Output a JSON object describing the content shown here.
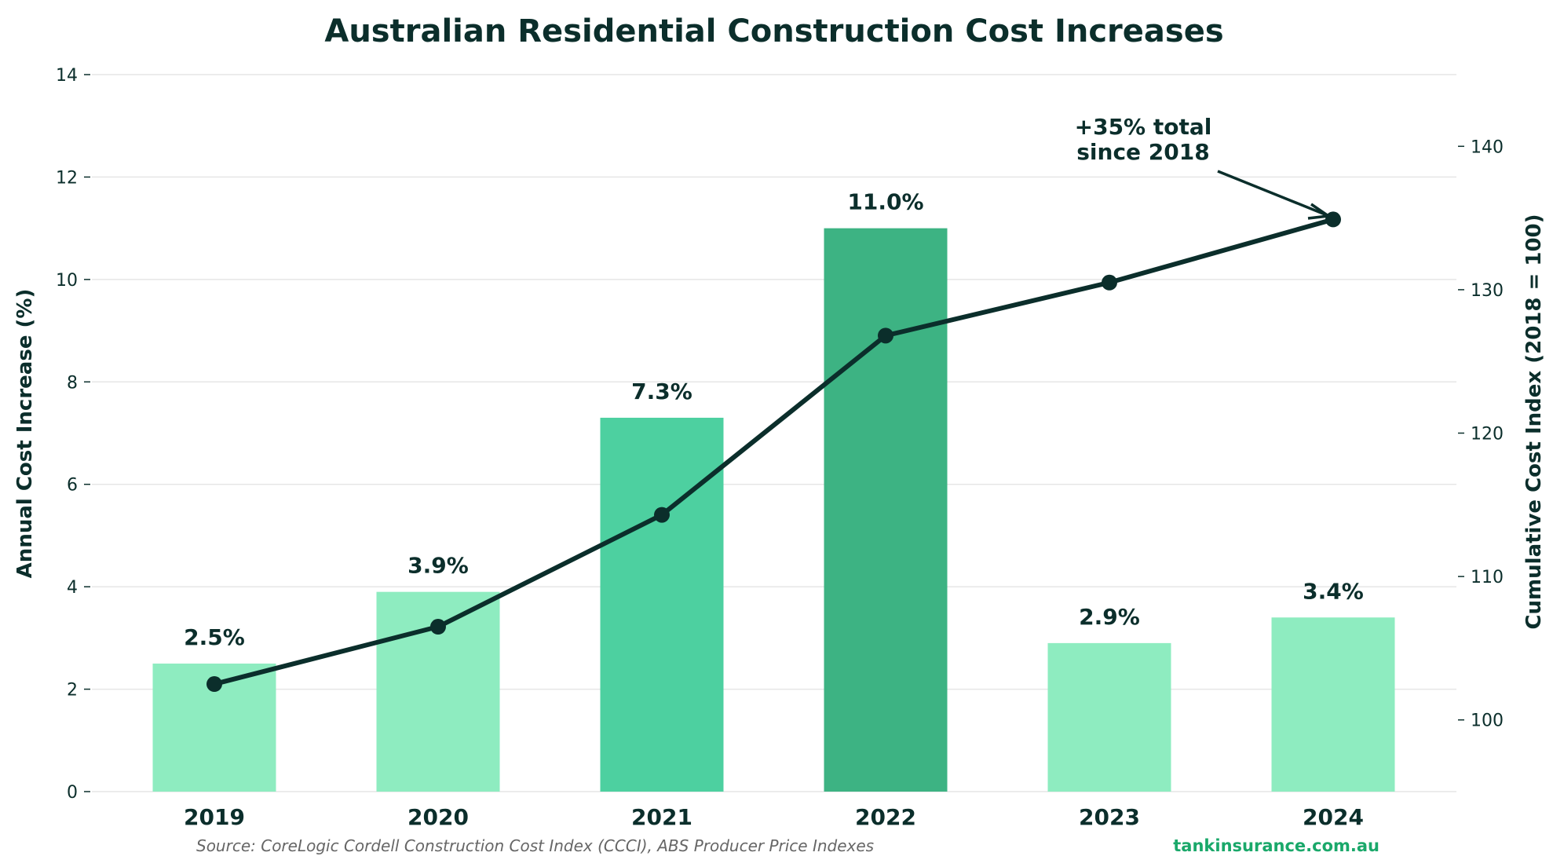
{
  "chart_data": {
    "type": "bar+line",
    "title": "Australian Residential Construction Cost Increases",
    "categories": [
      "2019",
      "2020",
      "2021",
      "2022",
      "2023",
      "2024"
    ],
    "bars": {
      "values": [
        2.5,
        3.9,
        7.3,
        11.0,
        2.9,
        3.4
      ],
      "labels": [
        "2.5%",
        "3.9%",
        "7.3%",
        "11.0%",
        "2.9%",
        "3.4%"
      ],
      "colors": [
        "#8eecc0",
        "#8eecc0",
        "#4dd0a0",
        "#3db383",
        "#8eecc0",
        "#8eecc0"
      ]
    },
    "line": {
      "values": [
        102.5,
        106.5,
        114.3,
        126.8,
        130.5,
        134.9
      ],
      "color": "#0b2e2b"
    },
    "ylabel_left": "Annual Cost Increase (%)",
    "ylabel_right": "Cumulative Cost Index (2018 = 100)",
    "ylim_left": [
      0,
      14
    ],
    "yticks_left": [
      0,
      2,
      4,
      6,
      8,
      10,
      12,
      14
    ],
    "ylim_right": [
      95,
      145
    ],
    "yticks_right": [
      100,
      110,
      120,
      130,
      140
    ],
    "grid": "horizontal",
    "annotation": {
      "lines": [
        "+35% total",
        "since 2018"
      ],
      "target_category": "2024"
    },
    "source": "Source: CoreLogic Cordell Construction Cost Index (CCCI), ABS Producer Price Indexes",
    "brand": "tankinsurance.com.au",
    "colors": {
      "text": "#0b2e2b",
      "brand": "#1aa86a",
      "source": "#666666",
      "grid": "#e6e6e6"
    }
  }
}
